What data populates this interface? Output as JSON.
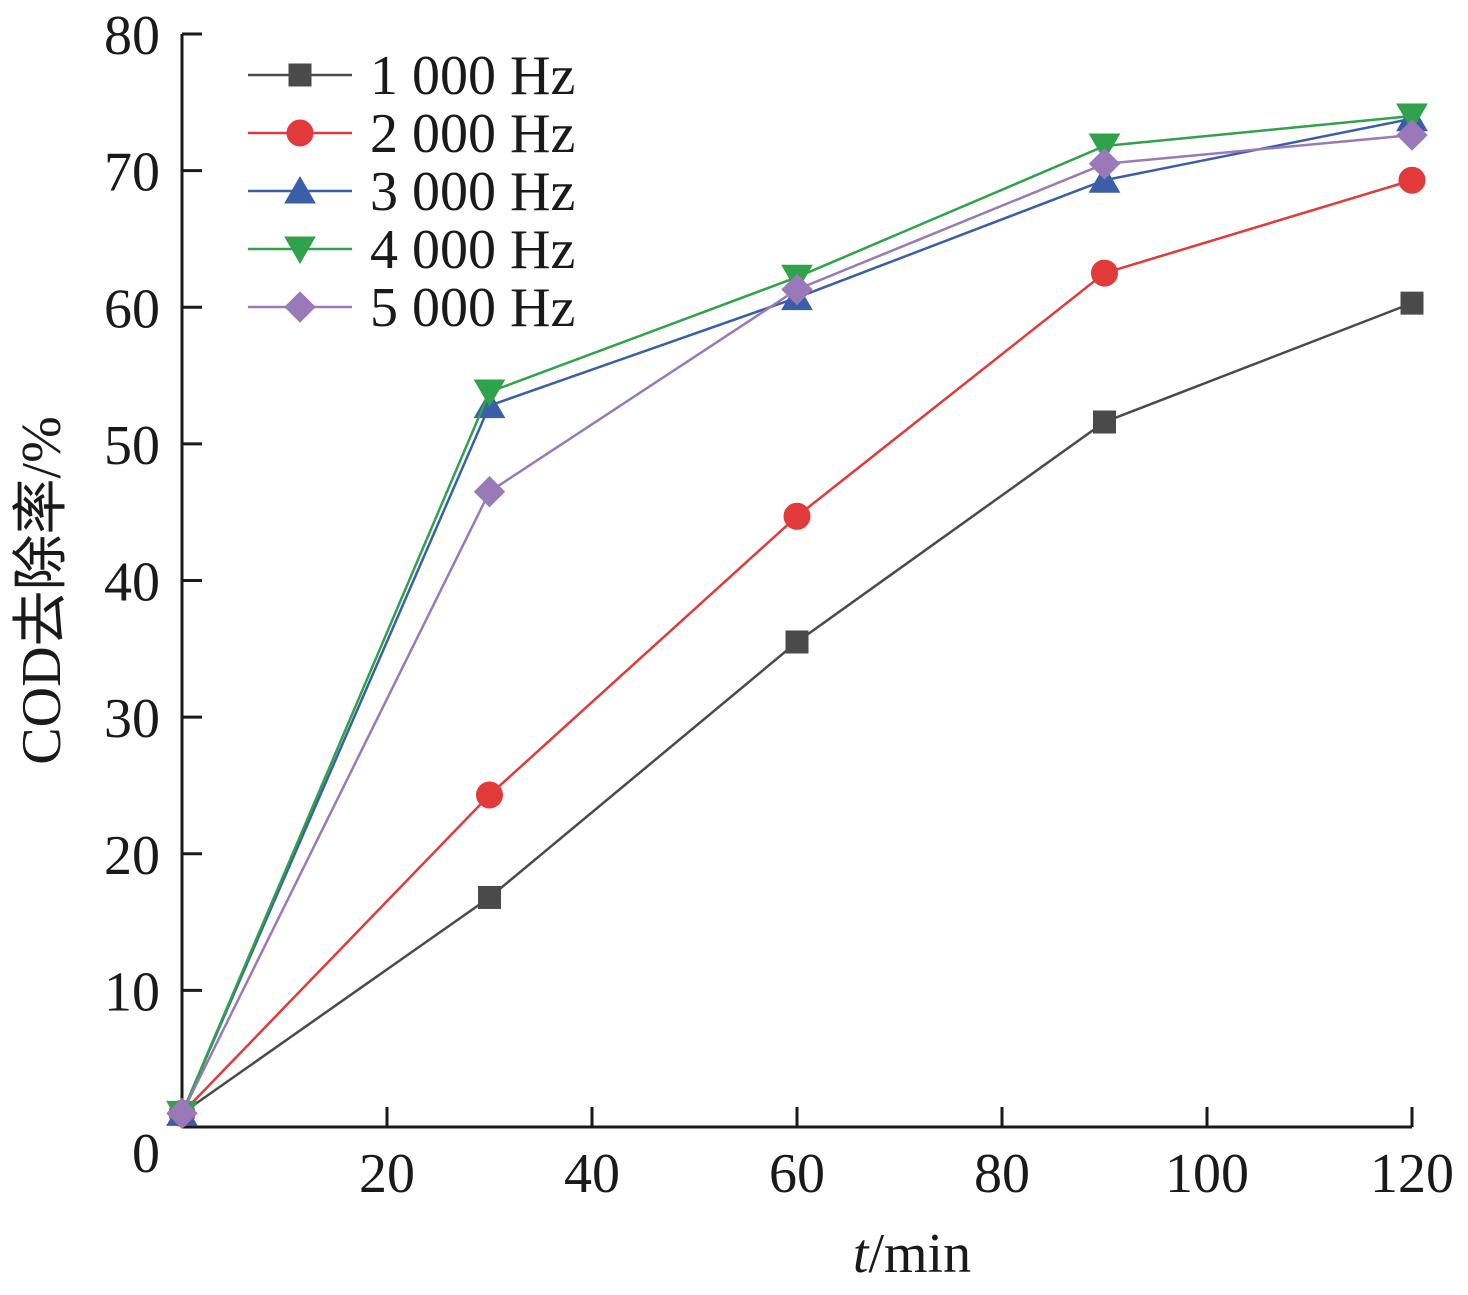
{
  "chart_data": {
    "type": "line",
    "xlabel": "t/min",
    "xlabel_italic": "t",
    "xlabel_rest": "/min",
    "ylabel": "COD去除率/%",
    "xlim": [
      0,
      120
    ],
    "ylim": [
      0,
      80
    ],
    "x_ticks": [
      20,
      40,
      60,
      80,
      100,
      120
    ],
    "y_ticks": [
      0,
      10,
      20,
      30,
      40,
      50,
      60,
      70,
      80
    ],
    "grid": false,
    "legend_position": "top-left",
    "x": [
      0,
      30,
      60,
      90,
      120
    ],
    "series": [
      {
        "name": "1 000 Hz",
        "marker": "square",
        "color": "#4a4a4a",
        "values": [
          1,
          16.8,
          35.5,
          51.6,
          60.3
        ]
      },
      {
        "name": "2 000 Hz",
        "marker": "circle",
        "color": "#e03a3a",
        "values": [
          1,
          24.3,
          44.7,
          62.5,
          69.3
        ]
      },
      {
        "name": "3 000 Hz",
        "marker": "triangle-up",
        "color": "#3a5fa8",
        "values": [
          1,
          52.8,
          60.7,
          69.3,
          73.8
        ]
      },
      {
        "name": "4 000 Hz",
        "marker": "triangle-down",
        "color": "#2fa24b",
        "values": [
          1,
          53.8,
          62.2,
          71.8,
          74.0
        ]
      },
      {
        "name": "5 000 Hz",
        "marker": "diamond",
        "color": "#9a79b8",
        "values": [
          1,
          46.5,
          61.3,
          70.5,
          72.6
        ]
      }
    ]
  }
}
